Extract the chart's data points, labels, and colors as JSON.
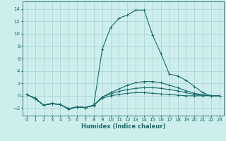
{
  "xlabel": "Humidex (Indice chaleur)",
  "xlim": [
    -0.5,
    23.5
  ],
  "ylim": [
    -3.2,
    15.2
  ],
  "yticks": [
    -2,
    0,
    2,
    4,
    6,
    8,
    10,
    12,
    14
  ],
  "xticks": [
    0,
    1,
    2,
    3,
    4,
    5,
    6,
    7,
    8,
    9,
    10,
    11,
    12,
    13,
    14,
    15,
    16,
    17,
    18,
    19,
    20,
    21,
    22,
    23
  ],
  "bg_color": "#ceeeed",
  "line_color": "#1a6b6b",
  "grid_color": "#aad8d8",
  "series": [
    {
      "x": [
        0,
        1,
        2,
        3,
        4,
        5,
        6,
        7,
        8,
        9,
        10,
        11,
        12,
        13,
        14,
        15,
        16,
        17,
        18,
        19,
        20,
        21,
        22,
        23
      ],
      "y": [
        0.2,
        -0.5,
        -1.5,
        -1.2,
        -1.4,
        -2.2,
        -1.8,
        -1.9,
        -1.5,
        -0.4,
        0.0,
        0.2,
        0.4,
        0.5,
        0.5,
        0.4,
        0.3,
        0.2,
        0.1,
        0.0,
        0.0,
        0.0,
        0.0,
        0.0
      ]
    },
    {
      "x": [
        0,
        1,
        2,
        3,
        4,
        5,
        6,
        7,
        8,
        9,
        10,
        11,
        12,
        13,
        14,
        15,
        16,
        17,
        18,
        19,
        20,
        21,
        22,
        23
      ],
      "y": [
        0.2,
        -0.4,
        -1.5,
        -1.3,
        -1.4,
        -2.1,
        -1.8,
        -1.9,
        -1.6,
        -0.2,
        0.3,
        0.7,
        1.0,
        1.2,
        1.3,
        1.3,
        1.2,
        1.0,
        0.8,
        0.5,
        0.2,
        0.1,
        0.0,
        0.0
      ]
    },
    {
      "x": [
        0,
        1,
        2,
        3,
        4,
        5,
        6,
        7,
        8,
        9,
        10,
        11,
        12,
        13,
        14,
        15,
        16,
        17,
        18,
        19,
        20,
        21,
        22,
        23
      ],
      "y": [
        0.2,
        -0.4,
        -1.5,
        -1.3,
        -1.4,
        -2.1,
        -1.8,
        -1.9,
        -1.5,
        -0.2,
        0.5,
        1.1,
        1.7,
        2.1,
        2.3,
        2.3,
        2.1,
        1.7,
        1.3,
        0.8,
        0.4,
        0.15,
        0.0,
        0.0
      ]
    },
    {
      "x": [
        0,
        1,
        2,
        3,
        4,
        5,
        6,
        7,
        8,
        9,
        10,
        11,
        12,
        13,
        14,
        15,
        16,
        17,
        18,
        19,
        20,
        21,
        22,
        23
      ],
      "y": [
        0.2,
        -0.4,
        -1.5,
        -1.3,
        -1.4,
        -2.1,
        -1.8,
        -1.9,
        -1.5,
        7.5,
        11.0,
        12.5,
        13.0,
        13.8,
        13.8,
        9.8,
        6.8,
        3.5,
        3.2,
        2.5,
        1.5,
        0.5,
        0.0,
        0.0
      ]
    }
  ]
}
